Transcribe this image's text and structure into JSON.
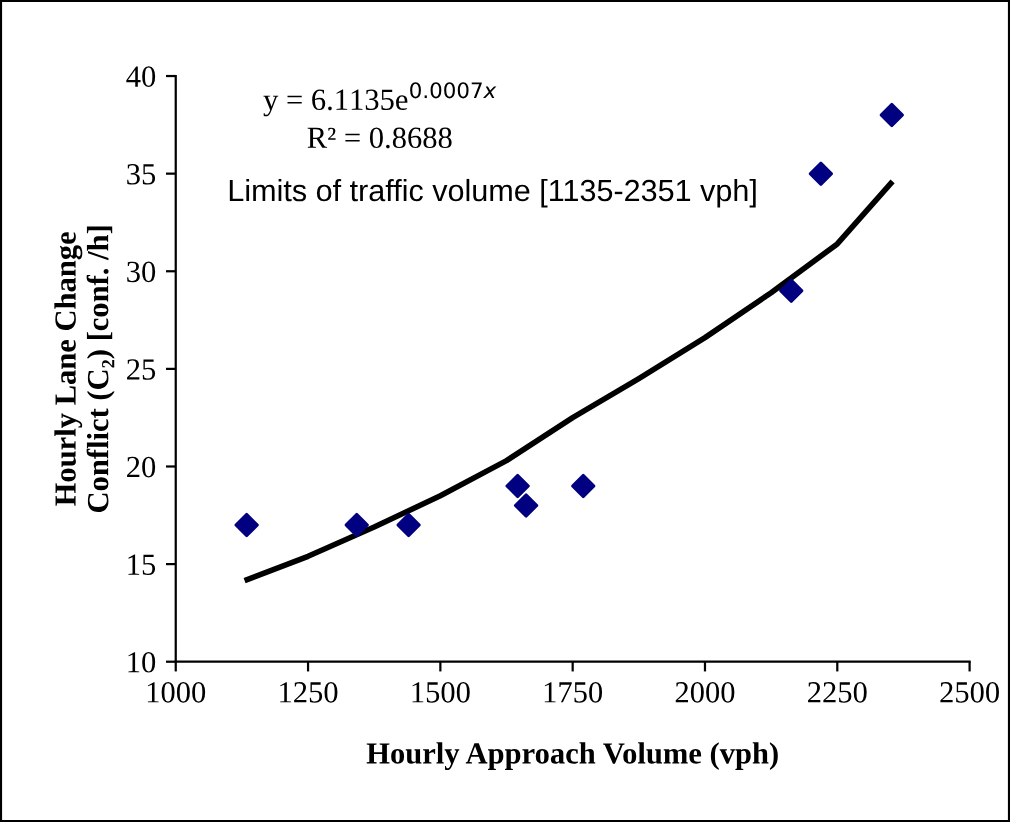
{
  "chart_data": {
    "type": "scatter",
    "xlabel": "Hourly Approach Volume (vph)",
    "ylabel": "Hourly Lane Change\nConflict (C₂) [conf. /h]",
    "xlim": [
      1000,
      2500
    ],
    "xticks": [
      1000,
      1250,
      1500,
      1750,
      2000,
      2250,
      2500
    ],
    "ylim": [
      10,
      40
    ],
    "yticks": [
      10,
      15,
      20,
      25,
      30,
      35,
      40
    ],
    "grid": false,
    "legend": false,
    "marker": "diamond",
    "series": [
      {
        "color": "#000080",
        "x": [
          1134,
          1342,
          1440,
          1646,
          1662,
          1770,
          2163,
          2219,
          2353
        ],
        "values": [
          17,
          17,
          17,
          19,
          18,
          19,
          29,
          35,
          38
        ]
      },
      {
        "type": "line",
        "color": "#000000",
        "marker": "none",
        "line_style": "solid",
        "x": [
          1135,
          1250,
          1375,
          1500,
          1625,
          1750,
          1875,
          2000,
          2125,
          2250,
          2351
        ],
        "values": [
          14.2,
          15.4,
          16.9,
          18.5,
          20.3,
          22.5,
          24.5,
          26.6,
          28.9,
          31.4,
          34.5
        ]
      }
    ],
    "annotations": [
      "y = 6.1135e$^{0.0007x}$",
      "R² = 0.8688",
      "Limits of traffic volume [1135-2351 vph]"
    ]
  }
}
